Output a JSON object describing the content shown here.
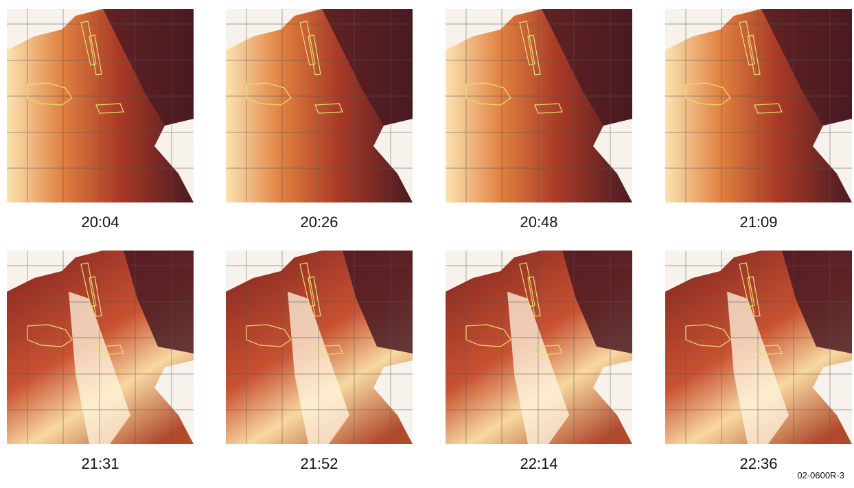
{
  "panels": [
    {
      "time": "20:04"
    },
    {
      "time": "20:26"
    },
    {
      "time": "20:48"
    },
    {
      "time": "21:09"
    },
    {
      "time": "21:31"
    },
    {
      "time": "21:52"
    },
    {
      "time": "22:14"
    },
    {
      "time": "22:36"
    }
  ],
  "figure_id": "02-0600R-3"
}
